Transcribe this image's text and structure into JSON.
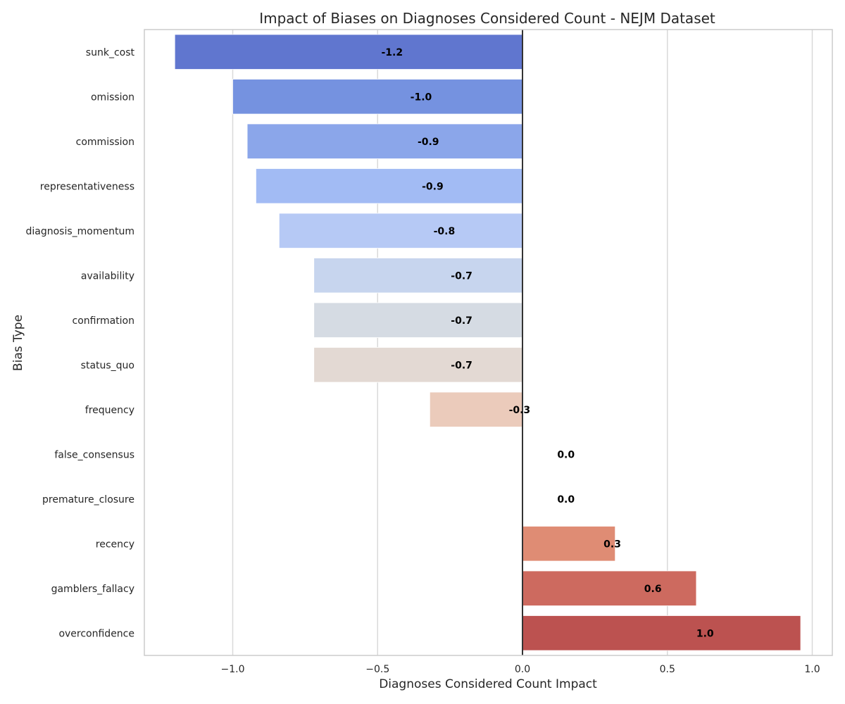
{
  "chart_data": {
    "type": "bar",
    "orientation": "horizontal",
    "title": "Impact of Biases on Diagnoses Considered Count - NEJM Dataset",
    "xlabel": "Diagnoses Considered Count Impact",
    "ylabel": "Bias Type",
    "xlim": [
      -1.3,
      1.07
    ],
    "xticks": [
      -1.0,
      -0.5,
      0.0,
      0.5,
      1.0
    ],
    "xtick_labels": [
      "−1.0",
      "−0.5",
      "0.0",
      "0.5",
      "1.0"
    ],
    "grid": true,
    "categories": [
      "sunk_cost",
      "omission",
      "commission",
      "representativeness",
      "diagnosis_momentum",
      "availability",
      "confirmation",
      "status_quo",
      "frequency",
      "false_consensus",
      "premature_closure",
      "recency",
      "gamblers_fallacy",
      "overconfidence"
    ],
    "values": [
      -1.2,
      -1.0,
      -0.95,
      -0.92,
      -0.84,
      -0.72,
      -0.72,
      -0.72,
      -0.32,
      0.0,
      0.0,
      0.32,
      0.6,
      0.96
    ],
    "data_labels": [
      "-1.2",
      "-1.0",
      "-0.9",
      "-0.9",
      "-0.8",
      "-0.7",
      "-0.7",
      "-0.7",
      "-0.3",
      "0.0",
      "0.0",
      "0.3",
      "0.6",
      "1.0"
    ],
    "colors": [
      "#6076cf",
      "#7592e0",
      "#8ba6ea",
      "#a2bbf4",
      "#b6c9f5",
      "#c7d5ee",
      "#d5dbe3",
      "#e3d9d3",
      "#ebcbbb",
      "#f0b79d",
      "#e9a184",
      "#df8c74",
      "#cd6a5f",
      "#bc5250"
    ]
  }
}
